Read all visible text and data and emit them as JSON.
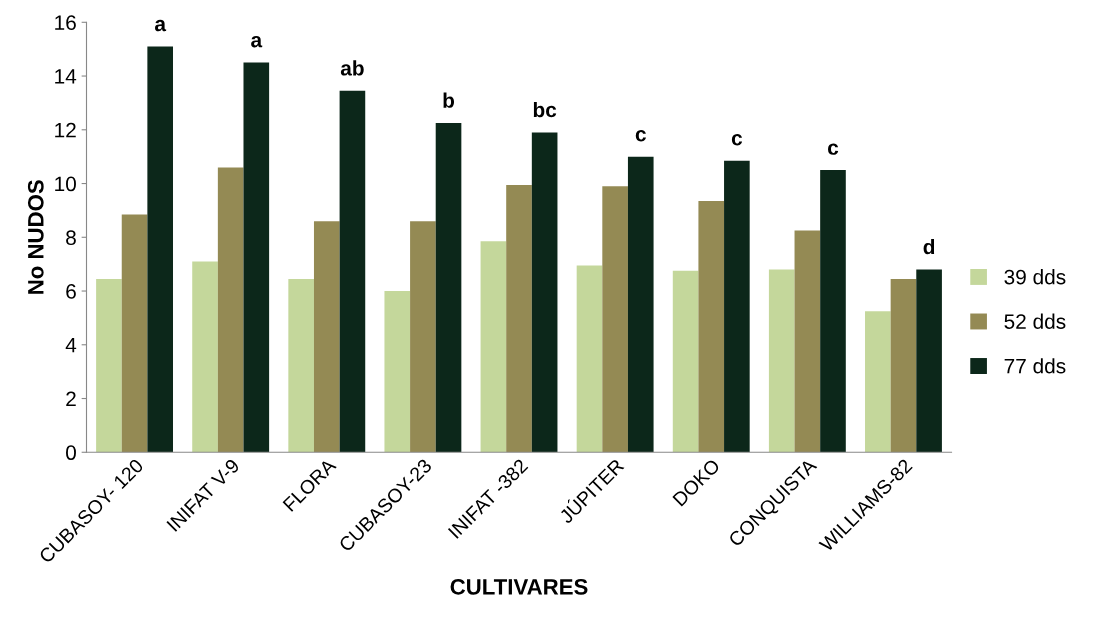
{
  "chart_data": {
    "type": "bar",
    "xlabel": "CULTIVARES",
    "ylabel": "No NUDOS",
    "categories": [
      "CUBASOY- 120",
      "INIFAT V-9",
      "FLORA",
      "CUBASOY-23",
      "INIFAT -382",
      "JÚPITER",
      "DOKO",
      "CONQUISTA",
      "WILLIAMS-82"
    ],
    "series": [
      {
        "name": "39 dds",
        "color": "#c4d79b",
        "values": [
          6.45,
          7.1,
          6.45,
          6.0,
          7.85,
          6.95,
          6.75,
          6.8,
          5.25
        ]
      },
      {
        "name": "52 dds",
        "color": "#948a54",
        "values": [
          8.85,
          10.6,
          8.6,
          8.6,
          9.95,
          9.9,
          9.35,
          8.25,
          6.45
        ]
      },
      {
        "name": "77 dds",
        "color": "#0c271a",
        "values": [
          15.1,
          14.5,
          13.45,
          12.25,
          11.9,
          11.0,
          10.85,
          10.5,
          6.8
        ]
      }
    ],
    "ylim": [
      0,
      16
    ],
    "yticks": [
      0,
      2,
      4,
      6,
      8,
      10,
      12,
      14,
      16
    ],
    "grid": false,
    "legend": "right",
    "annotations": [
      "a",
      "a",
      "ab",
      "b",
      "bc",
      "c",
      "c",
      "c",
      "d"
    ]
  }
}
